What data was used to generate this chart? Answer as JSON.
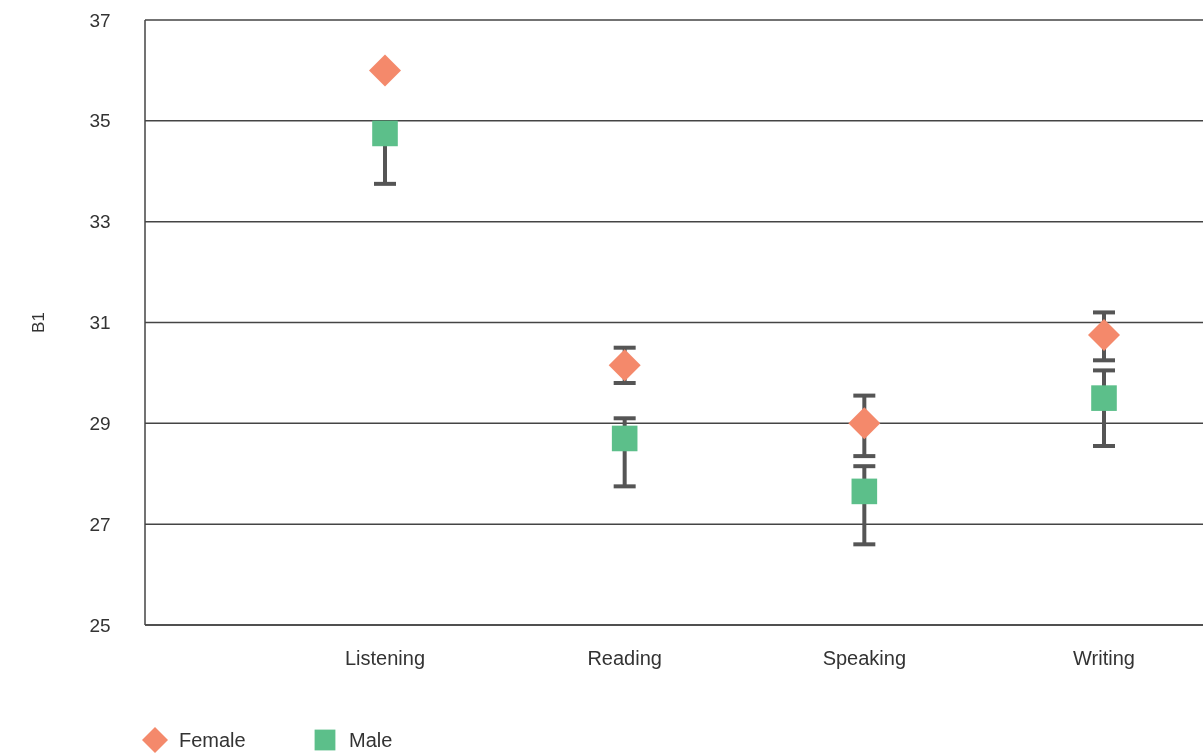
{
  "chart_data": {
    "type": "scatter",
    "ylabel": "B1",
    "categories": [
      "Listening",
      "Reading",
      "Speaking",
      "Writing"
    ],
    "series": [
      {
        "name": "Female",
        "color": "#f4896b",
        "marker": "diamond",
        "values": [
          36.0,
          30.15,
          29.0,
          30.75
        ],
        "errors": [
          null,
          [
            29.8,
            30.5
          ],
          [
            28.35,
            29.55
          ],
          [
            30.25,
            31.2
          ]
        ]
      },
      {
        "name": "Male",
        "color": "#5cbf8a",
        "marker": "square",
        "values": [
          34.75,
          28.7,
          27.65,
          29.5
        ],
        "errors": [
          [
            33.75,
            34.75
          ],
          [
            27.75,
            29.1
          ],
          [
            26.6,
            28.15
          ],
          [
            28.55,
            30.05
          ]
        ]
      }
    ],
    "ylim": [
      25,
      37
    ],
    "yticks": [
      25,
      27,
      29,
      31,
      33,
      35,
      37
    ],
    "grid": "y",
    "legend": "bottom left"
  }
}
